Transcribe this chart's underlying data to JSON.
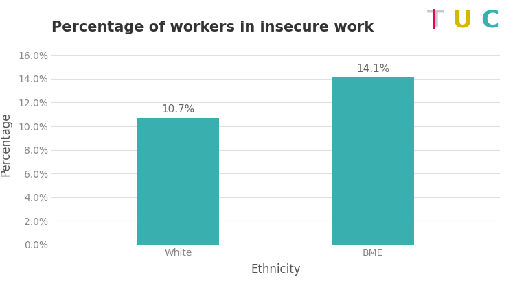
{
  "title": "Percentage of workers in insecure work",
  "categories": [
    "White",
    "BME"
  ],
  "values": [
    0.107,
    0.141
  ],
  "labels": [
    "10.7%",
    "14.1%"
  ],
  "bar_color": "#3aafb0",
  "xlabel": "Ethnicity",
  "ylabel": "Percentage",
  "ylim": [
    0,
    0.17
  ],
  "yticks": [
    0.0,
    0.02,
    0.04,
    0.06,
    0.08,
    0.1,
    0.12,
    0.14,
    0.16
  ],
  "ytick_labels": [
    "0.0%",
    "2.0%",
    "4.0%",
    "6.0%",
    "8.0%",
    "10.0%",
    "12.0%",
    "14.0%",
    "16.0%"
  ],
  "background_color": "#ffffff",
  "title_fontsize": 15,
  "label_fontsize": 11,
  "tick_fontsize": 10,
  "axis_label_fontsize": 12,
  "grid_color": "#e0e0e0",
  "bar_width": 0.42,
  "tuc_T_gray": "#c8c8c8",
  "tuc_T_pink": "#e8005a",
  "tuc_U_color": "#d4b800",
  "tuc_C_color": "#3aafb0"
}
